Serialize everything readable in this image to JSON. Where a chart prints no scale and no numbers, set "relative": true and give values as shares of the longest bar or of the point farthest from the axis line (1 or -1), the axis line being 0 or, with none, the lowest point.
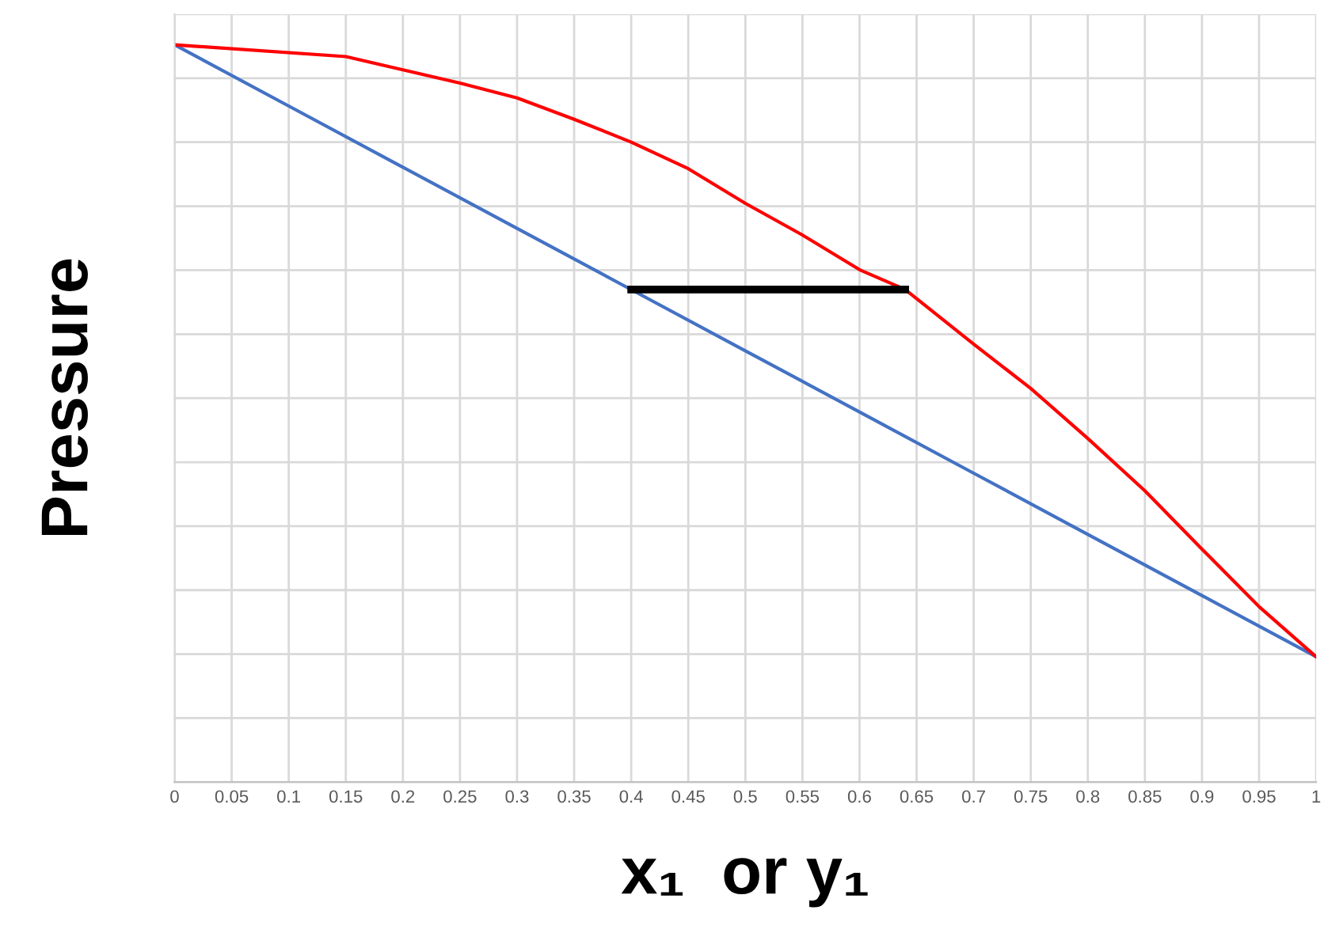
{
  "chart_data": {
    "type": "line",
    "xlabel": "x₁  or y₁",
    "ylabel": "Pressure",
    "relative": true,
    "grid": true,
    "xlim": [
      0,
      1
    ],
    "xticks": [
      0,
      0.05,
      0.1,
      0.15,
      0.2,
      0.25,
      0.3,
      0.35,
      0.4,
      0.45,
      0.5,
      0.55,
      0.6,
      0.65,
      0.7,
      0.75,
      0.8,
      0.85,
      0.9,
      0.95,
      1
    ],
    "series": [
      {
        "color": "#4472c4",
        "x": [
          0,
          0.1,
          0.2,
          0.3,
          0.4,
          0.5,
          0.6,
          0.7,
          0.8,
          0.9,
          1
        ],
        "values": [
          1.0,
          0.917,
          0.834,
          0.751,
          0.668,
          0.585,
          0.502,
          0.419,
          0.336,
          0.253,
          0.17
        ]
      },
      {
        "color": "#ff0000",
        "x": [
          0,
          0.15,
          0.2,
          0.25,
          0.3,
          0.35,
          0.4,
          0.45,
          0.5,
          0.55,
          0.6,
          0.64,
          0.7,
          0.75,
          0.8,
          0.85,
          0.9,
          0.95,
          1
        ],
        "values": [
          1.0,
          0.984,
          0.966,
          0.948,
          0.928,
          0.899,
          0.868,
          0.832,
          0.785,
          0.742,
          0.695,
          0.668,
          0.594,
          0.534,
          0.466,
          0.395,
          0.316,
          0.238,
          0.17
        ]
      },
      {
        "color": "#000000",
        "x": [
          0.4,
          0.64
        ],
        "values": [
          0.668,
          0.668
        ]
      }
    ]
  }
}
